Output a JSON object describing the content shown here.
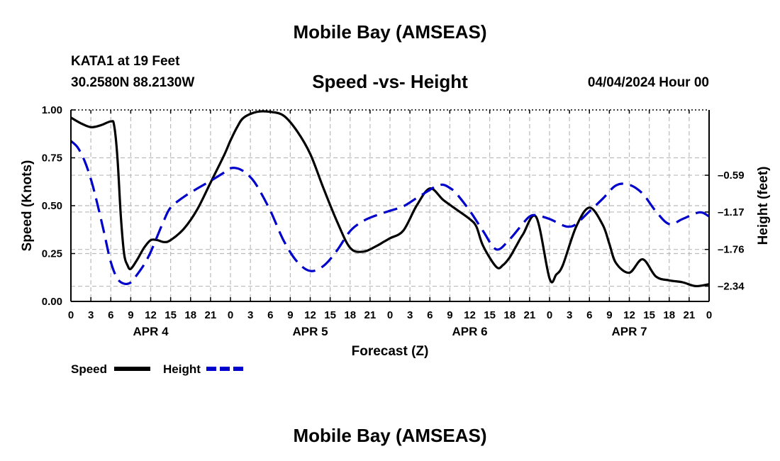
{
  "header": {
    "title": "Mobile Bay (AMSEAS)",
    "station": "KATA1 at 19 Feet",
    "coords": "30.2580N  88.2130W",
    "subtitle": "Speed -vs- Height",
    "datetime": "04/04/2024 Hour 00"
  },
  "footer": {
    "title": "Mobile Bay (AMSEAS)"
  },
  "chart_data": {
    "type": "line",
    "title": "Speed -vs- Height",
    "xlabel": "Forecast (Z)",
    "ylabel_left": "Speed (Knots)",
    "ylabel_right": "Height (feet)",
    "xlim_hours": [
      0,
      96
    ],
    "ylim_left": [
      0,
      1
    ],
    "ylim_right": [
      -2.58,
      0.44
    ],
    "x_tick_labels": [
      "0",
      "3",
      "6",
      "9",
      "12",
      "15",
      "18",
      "21",
      "0",
      "3",
      "6",
      "9",
      "12",
      "15",
      "18",
      "21",
      "0",
      "3",
      "6",
      "9",
      "12",
      "15",
      "18",
      "21",
      "0",
      "3",
      "6",
      "9",
      "12",
      "15",
      "18",
      "21",
      "0"
    ],
    "day_labels": [
      {
        "label": "APR 4",
        "hour": 12
      },
      {
        "label": "APR 5",
        "hour": 36
      },
      {
        "label": "APR 6",
        "hour": 60
      },
      {
        "label": "APR 7",
        "hour": 84
      }
    ],
    "y_left_ticks": [
      "0.00",
      "0.25",
      "0.50",
      "0.75",
      "1.00"
    ],
    "y_right_ticks": [
      {
        "label": "–0.59",
        "value": -0.59
      },
      {
        "label": "–1.17",
        "value": -1.17
      },
      {
        "label": "–1.76",
        "value": -1.76
      },
      {
        "label": "–2.34",
        "value": -2.34
      }
    ],
    "grid": true,
    "legend_position": "bottom-left",
    "colors": {
      "speed": "#000000",
      "height": "#0000cc",
      "grid": "#bbbbbb"
    },
    "series": [
      {
        "name": "Speed",
        "axis": "left",
        "style": "solid",
        "x": [
          0,
          1.5,
          3,
          4.5,
          6,
          6.5,
          7,
          7.5,
          8,
          8.5,
          9,
          10,
          11,
          12,
          13,
          14,
          15,
          17,
          19,
          21,
          23,
          24,
          25,
          26,
          28,
          30,
          32,
          34,
          36,
          38,
          40,
          42,
          44,
          46,
          47,
          48,
          50,
          52,
          54,
          56,
          58,
          60,
          61,
          62,
          64,
          65,
          66,
          67,
          68,
          70,
          72,
          73,
          74,
          76,
          78,
          80,
          81,
          82,
          84,
          86,
          88,
          90,
          92,
          94,
          96
        ],
        "values": [
          0.96,
          0.93,
          0.91,
          0.92,
          0.94,
          0.92,
          0.75,
          0.45,
          0.25,
          0.19,
          0.17,
          0.22,
          0.28,
          0.32,
          0.32,
          0.31,
          0.32,
          0.38,
          0.48,
          0.62,
          0.76,
          0.84,
          0.91,
          0.96,
          0.99,
          0.99,
          0.97,
          0.89,
          0.77,
          0.59,
          0.42,
          0.28,
          0.26,
          0.29,
          0.31,
          0.33,
          0.37,
          0.5,
          0.59,
          0.53,
          0.48,
          0.43,
          0.39,
          0.29,
          0.18,
          0.19,
          0.23,
          0.29,
          0.35,
          0.44,
          0.12,
          0.14,
          0.19,
          0.39,
          0.49,
          0.4,
          0.3,
          0.2,
          0.15,
          0.22,
          0.13,
          0.11,
          0.1,
          0.08,
          0.09
        ]
      },
      {
        "name": "Height",
        "axis": "right",
        "style": "dashed",
        "x": [
          0,
          1,
          2,
          3,
          4,
          5,
          6,
          7,
          8,
          9,
          10,
          11,
          12,
          13,
          14,
          15,
          17,
          19,
          21,
          23,
          24,
          25,
          26,
          27,
          28,
          30,
          32,
          34,
          36,
          38,
          40,
          42,
          44,
          46,
          48,
          50,
          52,
          54,
          55,
          56,
          57,
          58,
          60,
          62,
          64,
          66,
          68,
          69,
          70,
          72,
          74,
          75,
          76,
          78,
          80,
          82,
          84,
          86,
          88,
          90,
          92,
          94,
          95,
          96
        ],
        "values": [
          -0.05,
          -0.15,
          -0.35,
          -0.65,
          -1.05,
          -1.5,
          -1.96,
          -2.22,
          -2.3,
          -2.28,
          -2.15,
          -2.0,
          -1.8,
          -1.55,
          -1.3,
          -1.1,
          -0.93,
          -0.8,
          -0.68,
          -0.55,
          -0.48,
          -0.48,
          -0.53,
          -0.62,
          -0.76,
          -1.15,
          -1.62,
          -1.95,
          -2.1,
          -2.02,
          -1.78,
          -1.47,
          -1.31,
          -1.22,
          -1.15,
          -1.08,
          -0.95,
          -0.82,
          -0.76,
          -0.74,
          -0.79,
          -0.88,
          -1.15,
          -1.47,
          -1.76,
          -1.6,
          -1.35,
          -1.24,
          -1.22,
          -1.28,
          -1.38,
          -1.4,
          -1.36,
          -1.16,
          -0.96,
          -0.75,
          -0.74,
          -0.88,
          -1.16,
          -1.36,
          -1.28,
          -1.19,
          -1.18,
          -1.24
        ]
      }
    ],
    "legend": [
      {
        "label": "Speed",
        "series": "Speed"
      },
      {
        "label": "Height",
        "series": "Height"
      }
    ]
  }
}
